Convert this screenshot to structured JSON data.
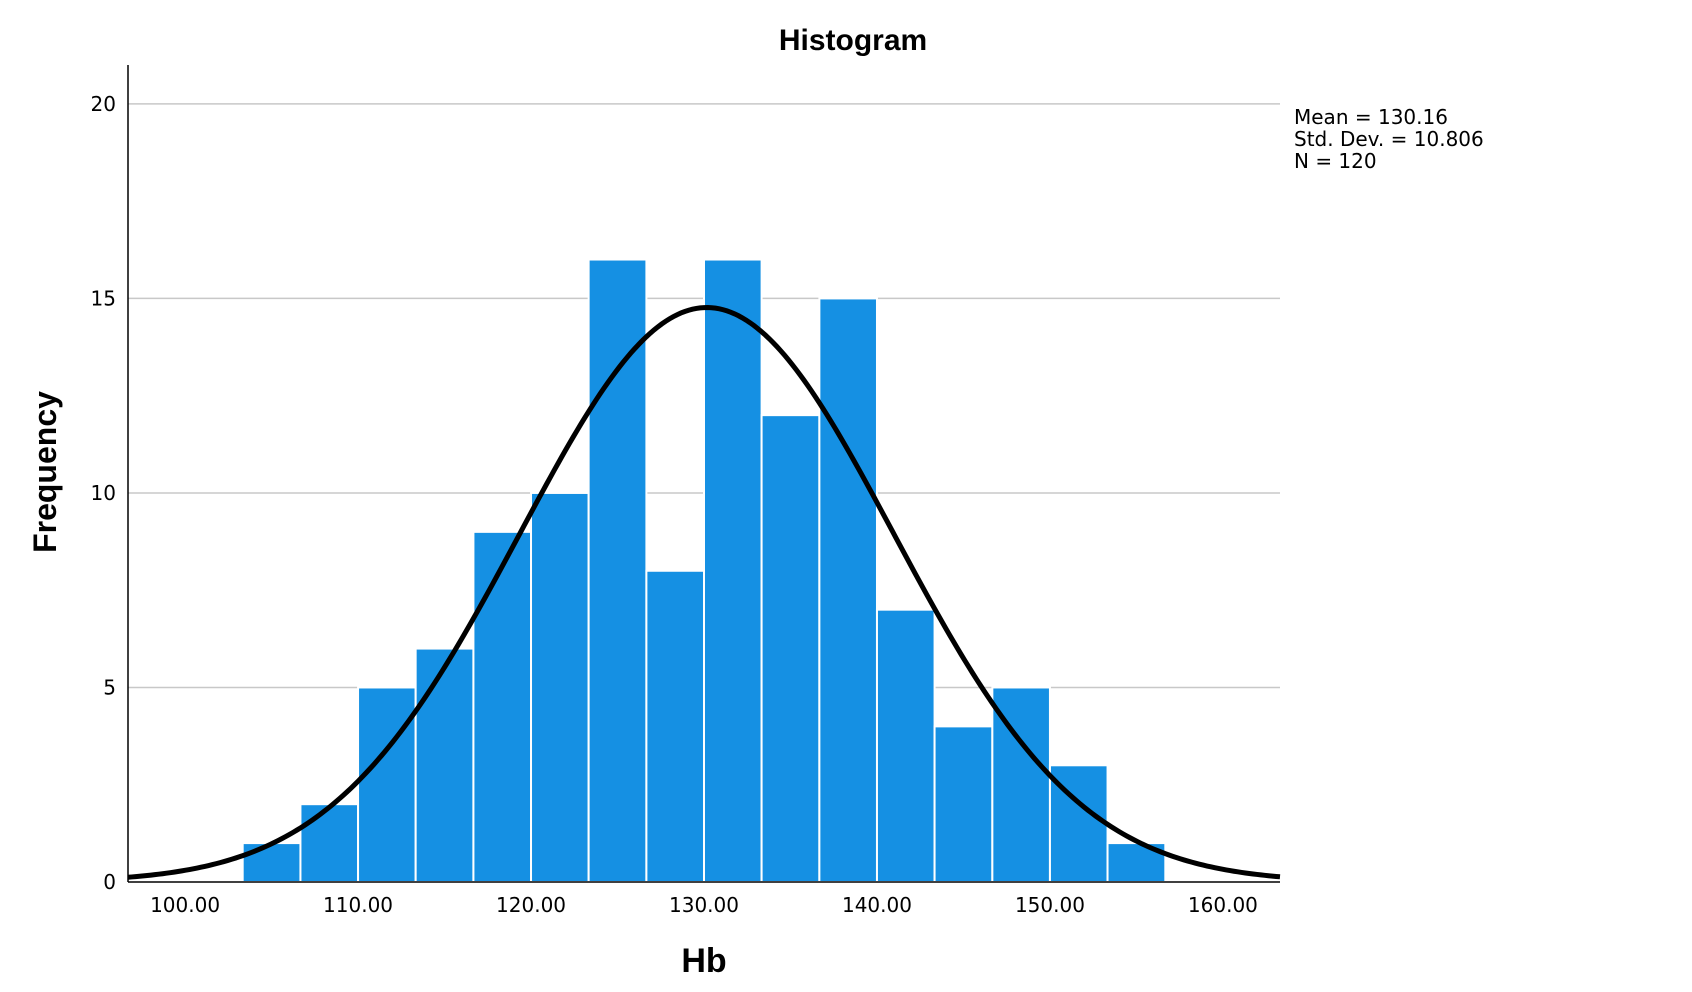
{
  "chart_data": {
    "type": "bar",
    "title": "Histogram",
    "xlabel": "Hb",
    "ylabel": "Frequency",
    "x_ticks": [
      "100.00",
      "110.00",
      "120.00",
      "130.00",
      "140.00",
      "150.00",
      "160.00"
    ],
    "x_tick_values": [
      100,
      110,
      120,
      130,
      140,
      150,
      160
    ],
    "y_ticks": [
      "0",
      "5",
      "10",
      "15",
      "20"
    ],
    "y_tick_values": [
      0,
      5,
      10,
      15,
      20
    ],
    "xlim": [
      96.7,
      163.3
    ],
    "ylim": [
      0,
      21
    ],
    "grid": true,
    "bin_width": 3.333,
    "bins": [
      {
        "start": 103.33,
        "end": 106.67,
        "count": 1
      },
      {
        "start": 106.67,
        "end": 110.0,
        "count": 2
      },
      {
        "start": 110.0,
        "end": 113.33,
        "count": 5
      },
      {
        "start": 113.33,
        "end": 116.67,
        "count": 6
      },
      {
        "start": 116.67,
        "end": 120.0,
        "count": 9
      },
      {
        "start": 120.0,
        "end": 123.33,
        "count": 10
      },
      {
        "start": 123.33,
        "end": 126.67,
        "count": 16
      },
      {
        "start": 126.67,
        "end": 130.0,
        "count": 8
      },
      {
        "start": 130.0,
        "end": 133.33,
        "count": 16
      },
      {
        "start": 133.33,
        "end": 136.67,
        "count": 12
      },
      {
        "start": 136.67,
        "end": 140.0,
        "count": 15
      },
      {
        "start": 140.0,
        "end": 143.33,
        "count": 7
      },
      {
        "start": 143.33,
        "end": 146.67,
        "count": 4
      },
      {
        "start": 146.67,
        "end": 150.0,
        "count": 5
      },
      {
        "start": 150.0,
        "end": 153.33,
        "count": 3
      },
      {
        "start": 153.33,
        "end": 156.67,
        "count": 1
      }
    ],
    "normal_curve": {
      "mean": 130.16,
      "std": 10.806,
      "n": 120
    },
    "stats": [
      "Mean = 130.16",
      "Std. Dev. = 10.806",
      "N = 120"
    ],
    "stats_placement": "top-right",
    "colors": {
      "bar": "#1590E3",
      "curve": "#000000",
      "grid": "#c8c8c8"
    }
  }
}
